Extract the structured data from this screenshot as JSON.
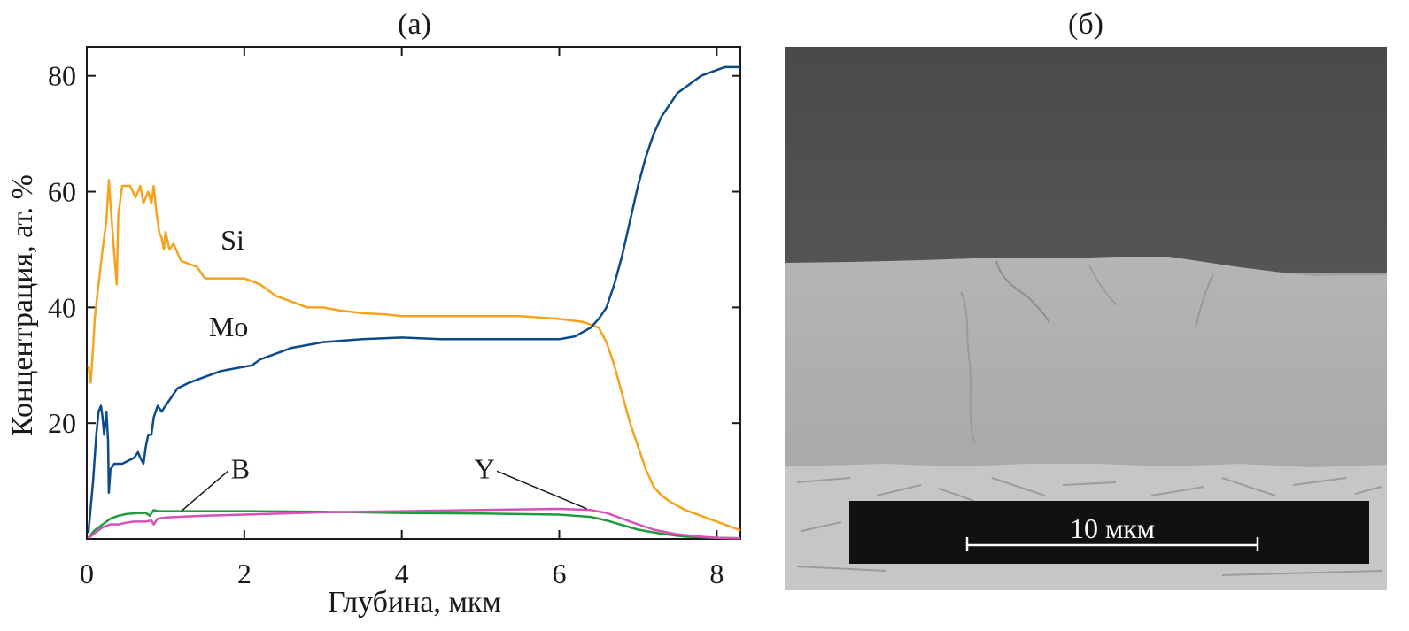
{
  "panels": {
    "a_label": "(а)",
    "b_label": "(б)"
  },
  "chart_data": {
    "type": "line",
    "title": "",
    "xlabel": "Глубина, мкм",
    "ylabel": "Концентрация, ат. %",
    "xlim": [
      0,
      8.3
    ],
    "ylim": [
      0,
      85
    ],
    "x_ticks": [
      0,
      2,
      4,
      6,
      8
    ],
    "y_ticks": [
      20,
      40,
      60,
      80
    ],
    "grid": false,
    "legend": "inline labels",
    "series": [
      {
        "name": "Si",
        "color": "#f5a31c",
        "points": [
          [
            0.02,
            30
          ],
          [
            0.05,
            27
          ],
          [
            0.08,
            33
          ],
          [
            0.1,
            38
          ],
          [
            0.15,
            44
          ],
          [
            0.2,
            50
          ],
          [
            0.25,
            55
          ],
          [
            0.28,
            62
          ],
          [
            0.3,
            58
          ],
          [
            0.35,
            49
          ],
          [
            0.38,
            44
          ],
          [
            0.4,
            56
          ],
          [
            0.45,
            61
          ],
          [
            0.55,
            61
          ],
          [
            0.62,
            59
          ],
          [
            0.68,
            61
          ],
          [
            0.72,
            58
          ],
          [
            0.78,
            60
          ],
          [
            0.82,
            58
          ],
          [
            0.85,
            61
          ],
          [
            0.88,
            57
          ],
          [
            0.92,
            53
          ],
          [
            0.95,
            52
          ],
          [
            0.98,
            50
          ],
          [
            1.0,
            53
          ],
          [
            1.05,
            50
          ],
          [
            1.1,
            51
          ],
          [
            1.2,
            48
          ],
          [
            1.4,
            47
          ],
          [
            1.5,
            45
          ],
          [
            1.7,
            45
          ],
          [
            1.9,
            45
          ],
          [
            2.0,
            45
          ],
          [
            2.2,
            44
          ],
          [
            2.4,
            42
          ],
          [
            2.6,
            41
          ],
          [
            2.8,
            40
          ],
          [
            3.0,
            40
          ],
          [
            3.2,
            39.5
          ],
          [
            3.5,
            39
          ],
          [
            3.8,
            38.8
          ],
          [
            4.0,
            38.5
          ],
          [
            4.5,
            38.5
          ],
          [
            5.0,
            38.5
          ],
          [
            5.5,
            38.5
          ],
          [
            6.0,
            38
          ],
          [
            6.3,
            37.5
          ],
          [
            6.5,
            36.5
          ],
          [
            6.6,
            34
          ],
          [
            6.7,
            30
          ],
          [
            6.8,
            25
          ],
          [
            6.9,
            20
          ],
          [
            7.0,
            16
          ],
          [
            7.1,
            12
          ],
          [
            7.2,
            9
          ],
          [
            7.3,
            7.5
          ],
          [
            7.4,
            6.5
          ],
          [
            7.6,
            5
          ],
          [
            7.8,
            4
          ],
          [
            8.0,
            3
          ],
          [
            8.2,
            2
          ],
          [
            8.3,
            1.5
          ]
        ]
      },
      {
        "name": "Mo",
        "color": "#0b4a8b",
        "points": [
          [
            0.02,
            1
          ],
          [
            0.08,
            10
          ],
          [
            0.12,
            18
          ],
          [
            0.15,
            22
          ],
          [
            0.18,
            23
          ],
          [
            0.2,
            21
          ],
          [
            0.22,
            18
          ],
          [
            0.25,
            22
          ],
          [
            0.27,
            17
          ],
          [
            0.28,
            8
          ],
          [
            0.3,
            12
          ],
          [
            0.35,
            13
          ],
          [
            0.45,
            13
          ],
          [
            0.6,
            14
          ],
          [
            0.65,
            15
          ],
          [
            0.68,
            14
          ],
          [
            0.72,
            13
          ],
          [
            0.75,
            16
          ],
          [
            0.78,
            18
          ],
          [
            0.82,
            18
          ],
          [
            0.85,
            21
          ],
          [
            0.9,
            23
          ],
          [
            0.95,
            22
          ],
          [
            1.0,
            23
          ],
          [
            1.05,
            24
          ],
          [
            1.15,
            26
          ],
          [
            1.3,
            27
          ],
          [
            1.5,
            28
          ],
          [
            1.7,
            29
          ],
          [
            1.9,
            29.5
          ],
          [
            2.1,
            30
          ],
          [
            2.2,
            31
          ],
          [
            2.4,
            32
          ],
          [
            2.6,
            33
          ],
          [
            2.8,
            33.5
          ],
          [
            3.0,
            34
          ],
          [
            3.2,
            34.2
          ],
          [
            3.5,
            34.5
          ],
          [
            4.0,
            34.8
          ],
          [
            4.5,
            34.5
          ],
          [
            5.0,
            34.5
          ],
          [
            5.5,
            34.5
          ],
          [
            6.0,
            34.5
          ],
          [
            6.2,
            35
          ],
          [
            6.4,
            36.5
          ],
          [
            6.5,
            38
          ],
          [
            6.6,
            40
          ],
          [
            6.7,
            44
          ],
          [
            6.8,
            49
          ],
          [
            6.9,
            55
          ],
          [
            7.0,
            61
          ],
          [
            7.1,
            66
          ],
          [
            7.2,
            70
          ],
          [
            7.3,
            73
          ],
          [
            7.4,
            75
          ],
          [
            7.5,
            77
          ],
          [
            7.6,
            78
          ],
          [
            7.7,
            79
          ],
          [
            7.8,
            80
          ],
          [
            7.9,
            80.5
          ],
          [
            8.0,
            81
          ],
          [
            8.1,
            81.5
          ],
          [
            8.3,
            81.5
          ]
        ]
      },
      {
        "name": "B",
        "color": "#1f9a3c",
        "points": [
          [
            0.02,
            0.2
          ],
          [
            0.1,
            1.5
          ],
          [
            0.2,
            2.5
          ],
          [
            0.3,
            3.5
          ],
          [
            0.4,
            4
          ],
          [
            0.5,
            4.3
          ],
          [
            0.65,
            4.5
          ],
          [
            0.75,
            4.5
          ],
          [
            0.8,
            4
          ],
          [
            0.85,
            5
          ],
          [
            0.9,
            4.8
          ],
          [
            1.0,
            4.8
          ],
          [
            1.5,
            4.8
          ],
          [
            2.0,
            4.8
          ],
          [
            3.0,
            4.7
          ],
          [
            4.0,
            4.5
          ],
          [
            5.0,
            4.4
          ],
          [
            6.0,
            4.2
          ],
          [
            6.4,
            3.8
          ],
          [
            6.6,
            3.2
          ],
          [
            6.8,
            2.4
          ],
          [
            7.0,
            1.6
          ],
          [
            7.3,
            0.9
          ],
          [
            7.6,
            0.4
          ],
          [
            8.0,
            0.2
          ],
          [
            8.3,
            0.1
          ]
        ]
      },
      {
        "name": "Y",
        "color": "#d752b8",
        "points": [
          [
            0.02,
            0.1
          ],
          [
            0.1,
            1
          ],
          [
            0.2,
            2
          ],
          [
            0.3,
            2.5
          ],
          [
            0.4,
            2.5
          ],
          [
            0.5,
            2.8
          ],
          [
            0.6,
            3
          ],
          [
            0.75,
            3
          ],
          [
            0.82,
            3.2
          ],
          [
            0.85,
            2.5
          ],
          [
            0.9,
            3.5
          ],
          [
            1.0,
            3.7
          ],
          [
            1.5,
            4
          ],
          [
            2.0,
            4.2
          ],
          [
            3.0,
            4.6
          ],
          [
            4.0,
            4.8
          ],
          [
            5.0,
            5
          ],
          [
            5.5,
            5.1
          ],
          [
            6.0,
            5.2
          ],
          [
            6.4,
            5
          ],
          [
            6.6,
            4.5
          ],
          [
            6.8,
            3.5
          ],
          [
            7.0,
            2.5
          ],
          [
            7.2,
            1.6
          ],
          [
            7.5,
            0.8
          ],
          [
            7.8,
            0.4
          ],
          [
            8.0,
            0.2
          ],
          [
            8.3,
            0.1
          ]
        ]
      }
    ],
    "annotations": [
      {
        "text": "Si",
        "x": 1.85,
        "y": 50
      },
      {
        "text": "Mo",
        "x": 1.8,
        "y": 35
      },
      {
        "text": "B",
        "x": 1.95,
        "y": 10.5,
        "arrow_to": [
          1.2,
          4.8
        ]
      },
      {
        "text": "Y",
        "x": 5.05,
        "y": 10.5,
        "arrow_to": [
          6.35,
          5.2
        ]
      }
    ]
  },
  "micrograph": {
    "scale_bar_text": "10 мкм"
  }
}
